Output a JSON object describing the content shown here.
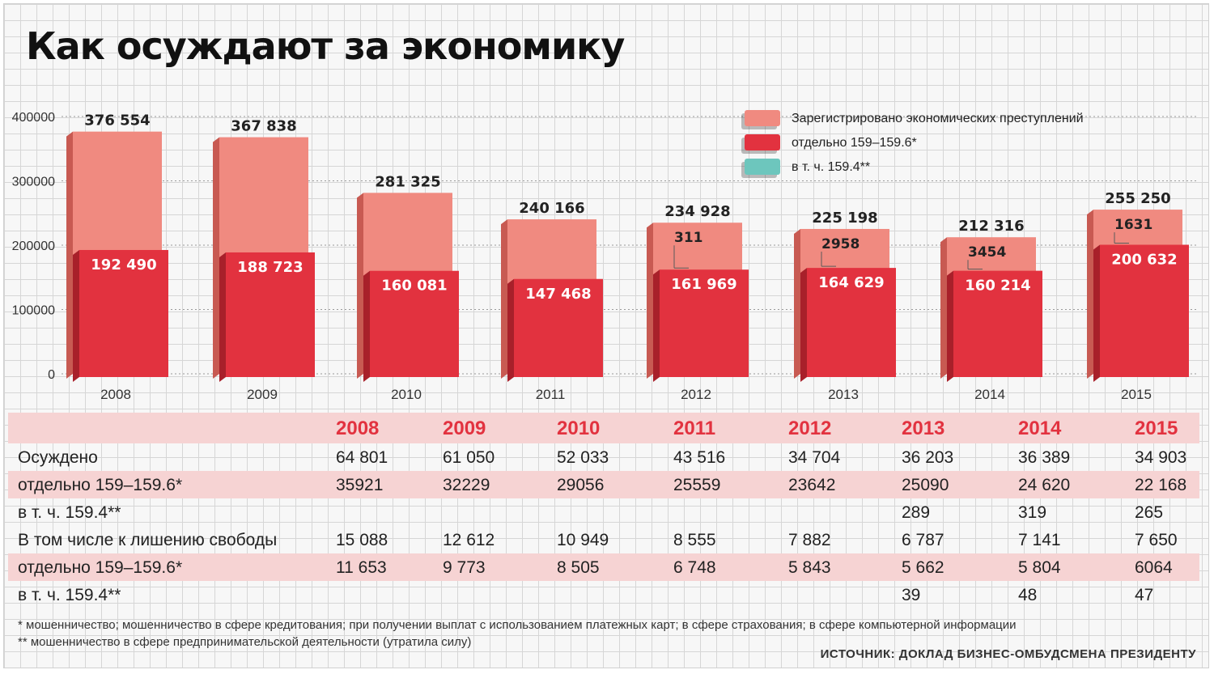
{
  "title": "Как осуждают за экономику",
  "chart_data": {
    "type": "bar",
    "categories": [
      "2008",
      "2009",
      "2010",
      "2011",
      "2012",
      "2013",
      "2014",
      "2015"
    ],
    "ylim": [
      0,
      400000
    ],
    "yticks": [
      "0",
      "100000",
      "200000",
      "300000",
      "400000"
    ],
    "grid": true,
    "legend_position": "top-right",
    "series": [
      {
        "name": "Зарегистрировано экономических преступлений",
        "color": "#f08a80",
        "values": [
          376554,
          367838,
          281325,
          240166,
          234928,
          225198,
          212316,
          255250
        ],
        "labels": [
          "376 554",
          "367 838",
          "281 325",
          "240 166",
          "234 928",
          "225 198",
          "212 316",
          "255 250"
        ]
      },
      {
        "name": "отдельно 159–159.6*",
        "color": "#e2323f",
        "values": [
          192490,
          188723,
          160081,
          147468,
          161969,
          164629,
          160214,
          200632
        ],
        "labels": [
          "192 490",
          "188 723",
          "160 081",
          "147 468",
          "161 969",
          "164 629",
          "160 214",
          "200 632"
        ]
      },
      {
        "name": "в т. ч. 159.4**",
        "color": "#6dc6bd",
        "values": [
          null,
          null,
          null,
          null,
          311,
          2958,
          3454,
          1631
        ],
        "labels": [
          "",
          "",
          "",
          "",
          "311",
          "2958",
          "3454",
          "1631"
        ]
      }
    ]
  },
  "table": {
    "years": [
      "2008",
      "2009",
      "2010",
      "2011",
      "2012",
      "2013",
      "2014",
      "2015"
    ],
    "rows": [
      {
        "label": "Осуждено",
        "values": [
          "64 801",
          "61 050",
          "52 033",
          "43 516",
          "34 704",
          "36 203",
          "36 389",
          "34 903"
        ]
      },
      {
        "label": "отдельно 159–159.6*",
        "values": [
          "35921",
          "32229",
          "29056",
          "25559",
          "23642",
          "25090",
          "24 620",
          "22 168"
        ]
      },
      {
        "label": "в т. ч. 159.4**",
        "values": [
          "",
          "",
          "",
          "",
          "",
          "289",
          "319",
          "265"
        ]
      },
      {
        "label": "В том числе к лишению свободы",
        "values": [
          "15 088",
          "12 612",
          "10 949",
          "8 555",
          "7 882",
          "6 787",
          "7 141",
          "7 650"
        ]
      },
      {
        "label": "отдельно 159–159.6*",
        "values": [
          "11 653",
          "9 773",
          "8 505",
          "6 748",
          "5 843",
          "5 662",
          "5 804",
          "6064"
        ]
      },
      {
        "label": "в т. ч. 159.4**",
        "values": [
          "",
          "",
          "",
          "",
          "",
          "39",
          "48",
          "47"
        ]
      }
    ]
  },
  "notes": [
    "* мошенничество; мошенничество в сфере кредитования; при получении выплат с использованием платежных карт; в сфере страхования; в сфере компьютерной информации",
    "** мошенничество в сфере предпринимательской деятельности (утратила силу)"
  ],
  "source": "ИСТОЧНИК: ДОКЛАД БИЗНЕС-ОМБУДСМЕНА ПРЕЗИДЕНТУ"
}
